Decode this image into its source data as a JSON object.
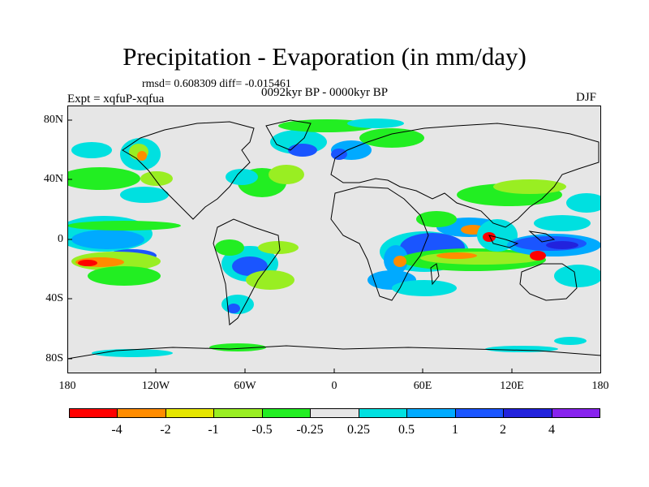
{
  "plot": {
    "title": "Precipitation - Evaporation (in mm/day)",
    "stats": "rmsd= 0.608309 diff= -0.015461",
    "period": "0092kyr BP - 0000kyr BP",
    "experiment": "Expt = xqfuP-xqfua",
    "season": "DJF"
  },
  "axes": {
    "y_ticks": [
      "80N",
      "40N",
      "0",
      "40S",
      "80S"
    ],
    "x_ticks": [
      "180",
      "120W",
      "60W",
      "0",
      "60E",
      "120E",
      "180"
    ]
  },
  "colorbar": {
    "labels": [
      "-4",
      "-2",
      "-1",
      "-0.5",
      "-0.25",
      "0.25",
      "0.5",
      "1",
      "2",
      "4"
    ],
    "colors": [
      "#ff0000",
      "#ff8c00",
      "#e6e600",
      "#99ee22",
      "#22ee22",
      "#e6e6e6",
      "#00e0e0",
      "#00aaff",
      "#1a55ff",
      "#2222dd",
      "#8822ee"
    ]
  },
  "chart_data": {
    "type": "heatmap",
    "title": "Precipitation - Evaporation (in mm/day)",
    "xlabel": "",
    "ylabel": "",
    "x_ticks": [
      "180",
      "120W",
      "60W",
      "0",
      "60E",
      "120E",
      "180"
    ],
    "y_ticks": [
      "80N",
      "40N",
      "0",
      "40S",
      "80S"
    ],
    "xlim": [
      -180,
      180
    ],
    "ylim": [
      -90,
      90
    ],
    "levels": [
      -4,
      -2,
      -1,
      -0.5,
      -0.25,
      0.25,
      0.5,
      1,
      2,
      4
    ]
  }
}
